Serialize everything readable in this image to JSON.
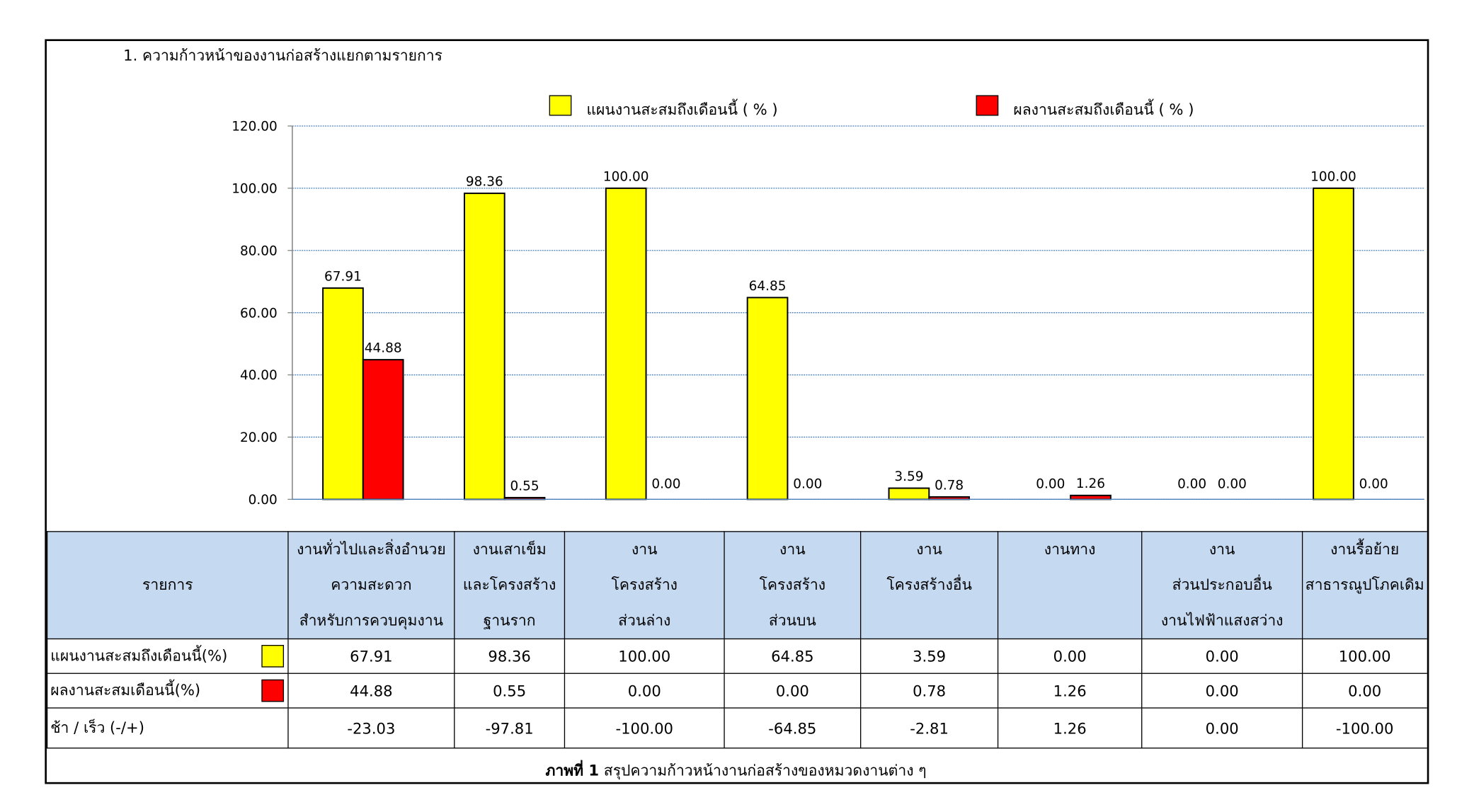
{
  "title": "1. ความก้าวหน้าของงานก่อสร้างแยกตามรายการ",
  "colors": {
    "plan": "#ffff00",
    "actual": "#ff0000",
    "grid": "#4f81bd",
    "header_bg": "#c5d9f1"
  },
  "chart_data": {
    "type": "bar",
    "title": "1. ความก้าวหน้าของงานก่อสร้างแยกตามรายการ",
    "categories": [
      "งานทั่วไปและสิ่งอำนวยความสะดวกสำหรับการควบคุมงาน",
      "งานเสาเข็มและโครงสร้างฐานราก",
      "งานโครงสร้างส่วนล่าง",
      "งานโครงสร้างส่วนบน",
      "งานโครงสร้างอื่น",
      "งานทาง",
      "งานส่วนประกอบอื่นงานไฟฟ้าแสงสว่าง",
      "งานรื้อย้ายสาธารณูปโภคเดิม"
    ],
    "series": [
      {
        "name": "แผนงานสะสมถึงเดือนนี้ ( % )",
        "color": "#ffff00",
        "values": [
          67.91,
          98.36,
          100.0,
          64.85,
          3.59,
          0.0,
          0.0,
          100.0
        ]
      },
      {
        "name": "ผลงานสะสมถึงเดือนนี้ ( % )",
        "color": "#ff0000",
        "values": [
          44.88,
          0.55,
          0.0,
          0.0,
          0.78,
          1.26,
          0.0,
          0.0
        ]
      }
    ],
    "ylim": [
      0,
      120
    ],
    "yticks": [
      "0.00",
      "20.00",
      "40.00",
      "60.00",
      "80.00",
      "100.00",
      "120.00"
    ],
    "grid": true,
    "legend": "top"
  },
  "table": {
    "corner": "รายการ",
    "headers": [
      [
        "งานทั่วไปและสิ่งอำนวย",
        "ความสะดวก",
        "สำหรับการควบคุมงาน"
      ],
      [
        "งานเสาเข็ม",
        "และโครงสร้าง",
        "ฐานราก"
      ],
      [
        "งาน",
        "โครงสร้าง",
        "ส่วนล่าง"
      ],
      [
        "งาน",
        "โครงสร้าง",
        "ส่วนบน"
      ],
      [
        "งาน",
        "โครงสร้างอื่น",
        ""
      ],
      [
        "งานทาง",
        "",
        ""
      ],
      [
        "งาน",
        "ส่วนประกอบอื่น",
        "งานไฟฟ้าแสงสว่าง"
      ],
      [
        "งานรื้อย้าย",
        "สาธารณูปโภคเดิม",
        ""
      ]
    ],
    "rows": [
      {
        "label": "แผนงานสะสมถึงเดือนนี้(%)",
        "values": [
          "67.91",
          "98.36",
          "100.00",
          "64.85",
          "3.59",
          "0.00",
          "0.00",
          "100.00"
        ]
      },
      {
        "label": "ผลงานสะสมเดือนนี้(%)",
        "values": [
          "44.88",
          "0.55",
          "0.00",
          "0.00",
          "0.78",
          "1.26",
          "0.00",
          "0.00"
        ]
      },
      {
        "label": "ช้า / เร็ว  (-/+)",
        "values": [
          "-23.03",
          "-97.81",
          "-100.00",
          "-64.85",
          "-2.81",
          "1.26",
          "0.00",
          "-100.00"
        ]
      }
    ]
  },
  "caption": {
    "bold": "ภาพที่ 1",
    "text": " สรุปความก้าวหน้างานก่อสร้างของหมวดงานต่าง ๆ"
  }
}
